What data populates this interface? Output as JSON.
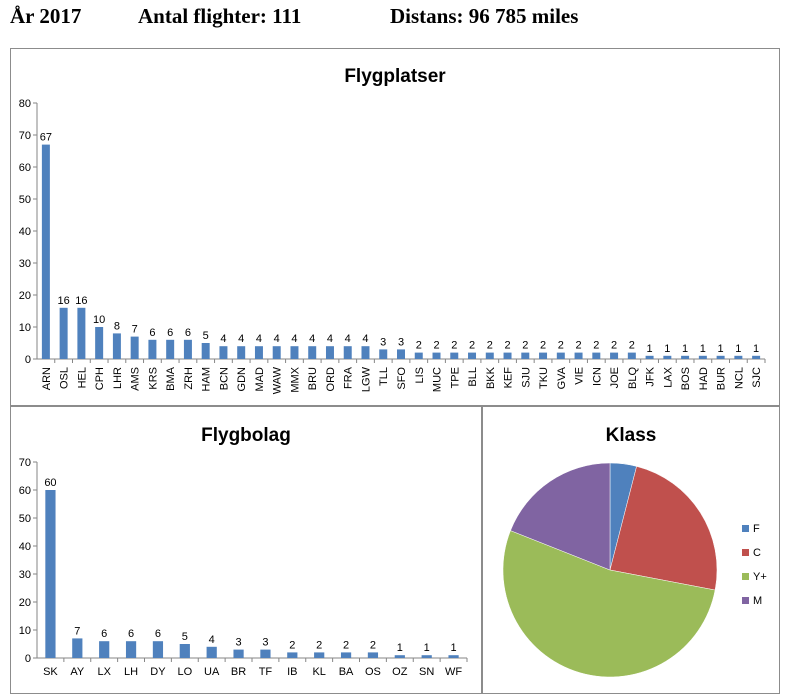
{
  "header": {
    "year": "År 2017",
    "flights": "Antal flighter: 111",
    "distance": "Distans: 96 785 miles"
  },
  "colors": {
    "bar": "#4f81bd",
    "axis": "#868686"
  },
  "chart_data": [
    {
      "type": "bar",
      "title": "Flygplatser",
      "categories": [
        "ARN",
        "OSL",
        "HEL",
        "CPH",
        "LHR",
        "AMS",
        "KRS",
        "BMA",
        "ZRH",
        "HAM",
        "BCN",
        "GDN",
        "MAD",
        "WAW",
        "MMX",
        "BRU",
        "ORD",
        "FRA",
        "LGW",
        "TLL",
        "SFO",
        "LIS",
        "MUC",
        "TPE",
        "BLL",
        "BKK",
        "KEF",
        "SJU",
        "TKU",
        "GVA",
        "VIE",
        "ICN",
        "JOE",
        "BLQ",
        "JFK",
        "LAX",
        "BOS",
        "HAD",
        "BUR",
        "NCL",
        "SJC"
      ],
      "values": [
        67,
        16,
        16,
        10,
        8,
        7,
        6,
        6,
        6,
        5,
        4,
        4,
        4,
        4,
        4,
        4,
        4,
        4,
        4,
        3,
        3,
        2,
        2,
        2,
        2,
        2,
        2,
        2,
        2,
        2,
        2,
        2,
        2,
        2,
        1,
        1,
        1,
        1,
        1,
        1,
        1
      ],
      "ylim": [
        0,
        80
      ],
      "yticks": [
        0,
        10,
        20,
        30,
        40,
        50,
        60,
        70,
        80
      ],
      "xlabel": "",
      "ylabel": ""
    },
    {
      "type": "bar",
      "title": "Flygbolag",
      "categories": [
        "SK",
        "AY",
        "LX",
        "LH",
        "DY",
        "LO",
        "UA",
        "BR",
        "TF",
        "IB",
        "KL",
        "BA",
        "OS",
        "OZ",
        "SN",
        "WF"
      ],
      "values": [
        60,
        7,
        6,
        6,
        6,
        5,
        4,
        3,
        3,
        2,
        2,
        2,
        2,
        1,
        1,
        1
      ],
      "ylim": [
        0,
        70
      ],
      "yticks": [
        0,
        10,
        20,
        30,
        40,
        50,
        60,
        70
      ],
      "xlabel": "",
      "ylabel": ""
    },
    {
      "type": "pie",
      "title": "Klass",
      "labels": [
        "F",
        "C",
        "Y+",
        "M"
      ],
      "values": [
        4,
        24,
        53,
        19
      ],
      "colors": [
        "#4f81bd",
        "#c0504d",
        "#9bbb59",
        "#8064a2"
      ],
      "legend": "right"
    }
  ]
}
